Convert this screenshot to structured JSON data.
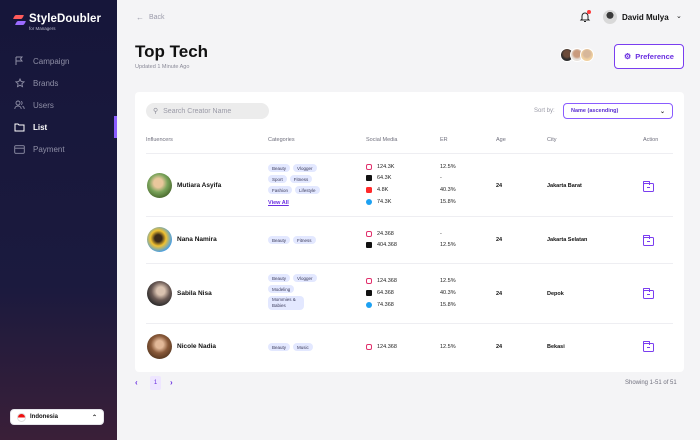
{
  "app": {
    "name": "StyleDoubler",
    "subtitle": "for Managers"
  },
  "sidebar": {
    "items": [
      {
        "label": "Campaign",
        "icon": "flag-icon"
      },
      {
        "label": "Brands",
        "icon": "star-icon"
      },
      {
        "label": "Users",
        "icon": "users-icon"
      },
      {
        "label": "List",
        "icon": "folder-icon",
        "active": true
      },
      {
        "label": "Payment",
        "icon": "card-icon"
      }
    ],
    "country": "Indonesia"
  },
  "header": {
    "back_label": "Back",
    "user_name": "David Mulya",
    "title": "Top Tech",
    "updated": "Updated 1 Minute Ago",
    "preference_label": "Preference"
  },
  "toolbar": {
    "search_placeholder": "Search Creator Name",
    "sort_label": "Sort by:",
    "sort_value": "Name (ascending)"
  },
  "table": {
    "headers": [
      "Influencers",
      "Categories",
      "Social Media",
      "ER",
      "Age",
      "City",
      "Action"
    ],
    "rows": [
      {
        "name": "Mutiara Asyifa",
        "categories": [
          "Beauty",
          "Vlogger",
          "Sport",
          "Fitness",
          "Fashion",
          "Lifestyle"
        ],
        "view_all": "View All",
        "social": [
          {
            "icon": "instagram-icon",
            "value": "124.3K",
            "er": "12.5%"
          },
          {
            "icon": "tiktok-icon",
            "value": "64.3K",
            "er": "-"
          },
          {
            "icon": "youtube-icon",
            "value": "4.8K",
            "er": "40.3%"
          },
          {
            "icon": "twitter-icon",
            "value": "74.3K",
            "er": "15.8%"
          }
        ],
        "age": "24",
        "city": "Jakarta Barat"
      },
      {
        "name": "Nana Namira",
        "categories": [
          "Beauty",
          "Fitness"
        ],
        "social": [
          {
            "icon": "instagram-icon",
            "value": "24.368",
            "er": "-"
          },
          {
            "icon": "tiktok-icon",
            "value": "404.368",
            "er": "12.5%"
          }
        ],
        "age": "24",
        "city": "Jakarta Selatan"
      },
      {
        "name": "Sabila Nisa",
        "categories": [
          "Beauty",
          "Vlogger",
          "Modeling",
          "Mommies & Babies"
        ],
        "social": [
          {
            "icon": "instagram-icon",
            "value": "124.368",
            "er": "12.5%"
          },
          {
            "icon": "tiktok-icon",
            "value": "64.368",
            "er": "40.3%"
          },
          {
            "icon": "twitter-icon",
            "value": "74.368",
            "er": "15.8%"
          }
        ],
        "age": "24",
        "city": "Depok"
      },
      {
        "name": "Nicole Nadia",
        "categories": [
          "Beauty",
          "Music"
        ],
        "social": [
          {
            "icon": "instagram-icon",
            "value": "124.368",
            "er": "12.5%"
          }
        ],
        "age": "24",
        "city": "Bekasi"
      }
    ]
  },
  "pagination": {
    "current": "1",
    "showing": "Showing 1-51 of 51"
  }
}
